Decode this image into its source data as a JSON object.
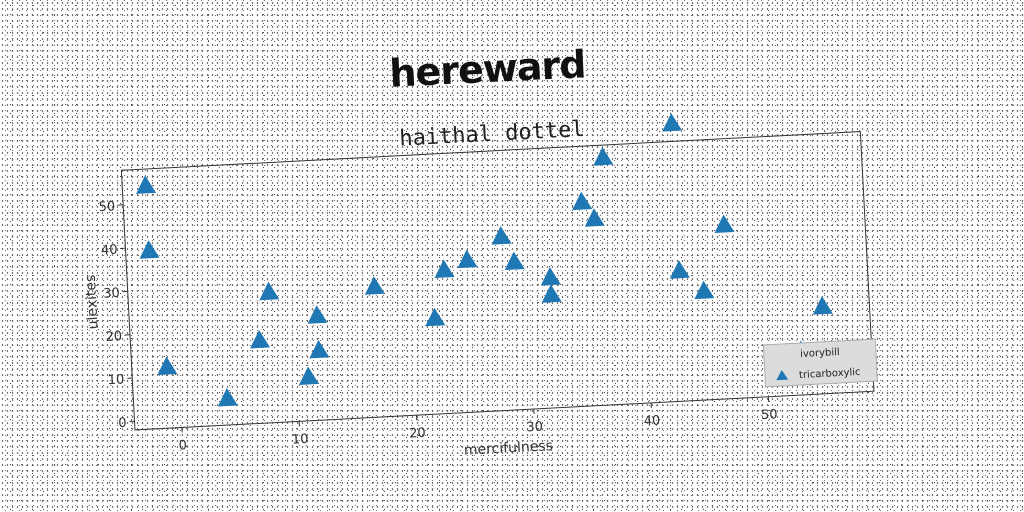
{
  "super_title": "hereward",
  "chart_data": {
    "type": "scatter",
    "title": "haithal dottel",
    "xlabel": "mercifulness",
    "ylabel": "ulexites",
    "xlim": [
      -4,
      59
    ],
    "ylim": [
      -2,
      58
    ],
    "xticks": [
      0,
      10,
      20,
      30,
      40,
      50
    ],
    "yticks": [
      0,
      10,
      20,
      30,
      40,
      50
    ],
    "grid": false,
    "legend": {
      "title": "ivorybill",
      "placement": "lower right"
    },
    "marker": "triangle",
    "color": "#1f77b4",
    "series": [
      {
        "name": "tricarboxylic",
        "x": [
          -2,
          -2,
          -1,
          4,
          7,
          8,
          11,
          12,
          12,
          17,
          22,
          23,
          25,
          28,
          29,
          32,
          32,
          35,
          36,
          37,
          43,
          43,
          45,
          47,
          53,
          55
        ],
        "y": [
          54,
          39,
          12,
          4,
          17,
          28,
          8,
          14,
          22,
          28,
          20,
          31,
          33,
          38,
          32,
          28,
          24,
          45,
          41,
          55,
          62,
          28,
          23,
          38,
          8,
          18
        ]
      }
    ]
  }
}
